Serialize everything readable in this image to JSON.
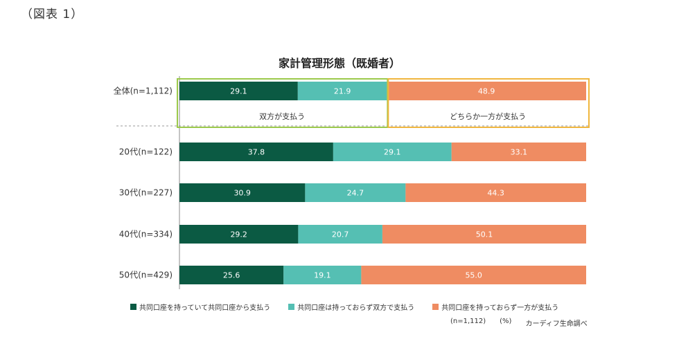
{
  "figure_label": "（図表 1）",
  "chart_data": {
    "type": "bar",
    "orientation": "horizontal",
    "stacked": true,
    "title": "家計管理形態（既婚者）",
    "categories": [
      "全体(n=1,112)",
      "20代(n=122)",
      "30代(n=227)",
      "40代(n=334)",
      "50代(n=429)"
    ],
    "series": [
      {
        "name": "共同口座を持っていて共同口座から支払う",
        "color": "#0b5a43",
        "values": [
          29.1,
          37.8,
          30.9,
          29.2,
          25.6
        ]
      },
      {
        "name": "共同口座は持っておらず双方で支払う",
        "color": "#55bfb3",
        "values": [
          21.9,
          29.1,
          24.7,
          20.7,
          19.1
        ]
      },
      {
        "name": "共同口座を持っておらず一方が支払う",
        "color": "#ef8c62",
        "values": [
          48.9,
          33.1,
          44.3,
          50.1,
          55.0
        ]
      }
    ],
    "xlim": [
      0,
      100
    ],
    "groups": [
      {
        "label": "双方が支払う",
        "color": "#9bc94a"
      },
      {
        "label": "どちらか一方が支払う",
        "color": "#f0b63d"
      }
    ]
  },
  "footnote": {
    "n": "(n=1,112)",
    "unit": "(%)",
    "source": "カーディフ生命調べ"
  }
}
